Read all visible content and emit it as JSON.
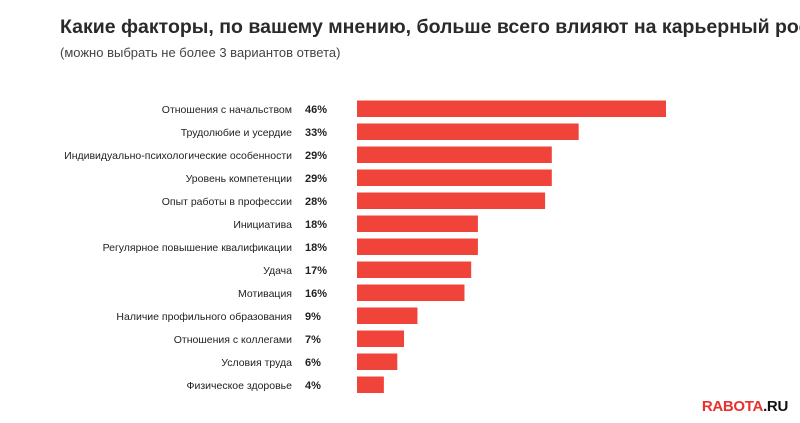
{
  "title": "Какие факторы, по вашему мнению, больше всего влияют на карьерный рост?",
  "subtitle": "(можно выбрать не более 3 вариантов ответа)",
  "brand": {
    "part1": "RABOTA",
    "part2": ".RU"
  },
  "colors": {
    "bar": "#f0443a",
    "brand_red": "#e8312f"
  },
  "chart_data": {
    "type": "bar",
    "orientation": "horizontal",
    "categories": [
      "Отношения с начальством",
      "Трудолюбие и усердие",
      "Индивидуально-психологические особенности",
      "Уровень компетенции",
      "Опыт работы в профессии",
      "Инициатива",
      "Регулярное повышение квалификации",
      "Удача",
      "Мотивация",
      "Наличие профильного образования",
      "Отношения с коллегами",
      "Условия труда",
      "Физическое здоровье"
    ],
    "values": [
      46,
      33,
      29,
      29,
      28,
      18,
      18,
      17,
      16,
      9,
      7,
      6,
      4
    ],
    "value_labels": [
      "46%",
      "33%",
      "29%",
      "29%",
      "28%",
      "18%",
      "18%",
      "17%",
      "16%",
      "9%",
      "7%",
      "6%",
      "4%"
    ],
    "unit": "%",
    "grid": false,
    "legend": "none"
  }
}
